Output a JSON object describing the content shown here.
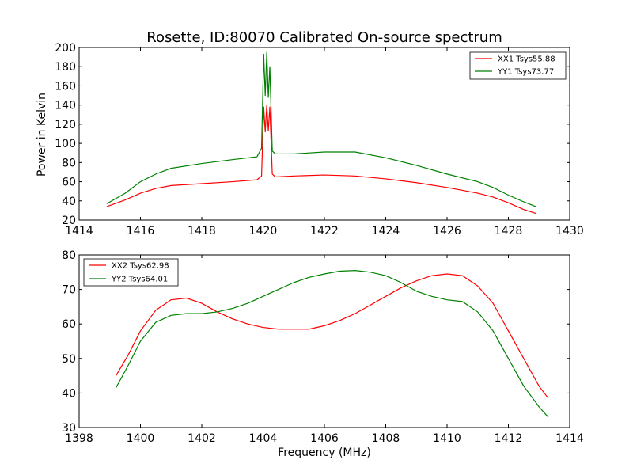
{
  "chart_data": [
    {
      "type": "line",
      "title": "Rosette, ID:80070 Calibrated On-source spectrum",
      "xlabel": "",
      "ylabel": "Power in Kelvin",
      "xlim": [
        1414,
        1430
      ],
      "ylim": [
        20,
        200
      ],
      "xticks": [
        "1414",
        "1416",
        "1418",
        "1420",
        "1422",
        "1424",
        "1426",
        "1428",
        "1430"
      ],
      "yticks": [
        "20",
        "40",
        "60",
        "80",
        "100",
        "120",
        "140",
        "160",
        "180",
        "200"
      ],
      "legend_position": "upper right",
      "series": [
        {
          "name": "XX1 Tsys55.88",
          "color": "#ff0000",
          "x": [
            1414.9,
            1415.5,
            1416.0,
            1416.5,
            1417.0,
            1418.0,
            1419.0,
            1419.8,
            1419.95,
            1420.02,
            1420.07,
            1420.12,
            1420.17,
            1420.22,
            1420.3,
            1420.4,
            1421.0,
            1422.0,
            1423.0,
            1424.0,
            1425.0,
            1426.0,
            1427.0,
            1427.5,
            1428.0,
            1428.5,
            1428.9
          ],
          "y": [
            34,
            41,
            48,
            53,
            56,
            58,
            60,
            62,
            66,
            138,
            112,
            140,
            113,
            138,
            68,
            65,
            66,
            67,
            66,
            63,
            59,
            54,
            48,
            44,
            38,
            31,
            27
          ]
        },
        {
          "name": "YY1 Tsys73.77",
          "color": "#008000",
          "x": [
            1414.9,
            1415.5,
            1416.0,
            1416.5,
            1417.0,
            1418.0,
            1419.0,
            1419.8,
            1419.95,
            1420.02,
            1420.07,
            1420.12,
            1420.17,
            1420.22,
            1420.3,
            1420.4,
            1421.0,
            1422.0,
            1423.0,
            1424.0,
            1425.0,
            1426.0,
            1427.0,
            1427.5,
            1428.0,
            1428.5,
            1428.9
          ],
          "y": [
            37,
            48,
            60,
            68,
            74,
            79,
            83,
            86,
            95,
            193,
            150,
            195,
            148,
            180,
            92,
            89,
            89,
            91,
            91,
            85,
            77,
            68,
            60,
            54,
            46,
            39,
            34
          ]
        }
      ]
    },
    {
      "type": "line",
      "title": "",
      "xlabel": "Frequency (MHz)",
      "ylabel": "",
      "xlim": [
        1398,
        1414
      ],
      "ylim": [
        30,
        80
      ],
      "xticks": [
        "1398",
        "1400",
        "1402",
        "1404",
        "1406",
        "1408",
        "1410",
        "1412",
        "1414"
      ],
      "yticks": [
        "30",
        "40",
        "50",
        "60",
        "70",
        "80"
      ],
      "legend_position": "upper left",
      "series": [
        {
          "name": "XX2 Tsys62.98",
          "color": "#ff0000",
          "x": [
            1399.2,
            1399.6,
            1400.0,
            1400.5,
            1401.0,
            1401.5,
            1402.0,
            1402.5,
            1403.0,
            1403.5,
            1404.0,
            1404.5,
            1405.0,
            1405.5,
            1406.0,
            1406.5,
            1407.0,
            1407.5,
            1408.0,
            1408.5,
            1409.0,
            1409.5,
            1410.0,
            1410.5,
            1411.0,
            1411.5,
            1412.0,
            1412.5,
            1413.0,
            1413.3
          ],
          "y": [
            45,
            51,
            58,
            64,
            67,
            67.5,
            66,
            63.5,
            61.5,
            60,
            59,
            58.5,
            58.5,
            58.5,
            59.5,
            61,
            63,
            65.5,
            68,
            70.5,
            72.5,
            74,
            74.5,
            74,
            71,
            66,
            58,
            50,
            42,
            38.5
          ]
        },
        {
          "name": "YY2 Tsys64.01",
          "color": "#008000",
          "x": [
            1399.2,
            1399.6,
            1400.0,
            1400.5,
            1401.0,
            1401.5,
            1402.0,
            1402.5,
            1403.0,
            1403.5,
            1404.0,
            1404.5,
            1405.0,
            1405.5,
            1406.0,
            1406.5,
            1407.0,
            1407.5,
            1408.0,
            1408.5,
            1409.0,
            1409.5,
            1410.0,
            1410.5,
            1411.0,
            1411.5,
            1412.0,
            1412.5,
            1413.0,
            1413.3
          ],
          "y": [
            41.5,
            48,
            55,
            60.5,
            62.5,
            63,
            63,
            63.5,
            64.5,
            66,
            68,
            70,
            72,
            73.5,
            74.5,
            75.3,
            75.5,
            75,
            74,
            72,
            69.5,
            68,
            67,
            66.5,
            63.5,
            58,
            50,
            42,
            36,
            33
          ]
        }
      ]
    }
  ]
}
